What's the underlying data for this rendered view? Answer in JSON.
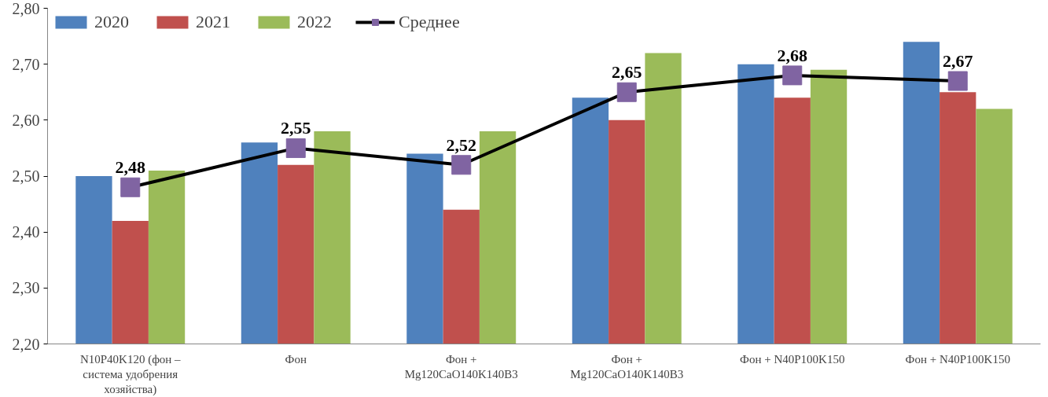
{
  "chart_data": {
    "type": "bar",
    "categories": [
      "N10P40K120 (фон – система удобрения хозяйства)",
      "Фон",
      "Фон + Mg120CaO140K140B3",
      "Фон + Mg120CaO140K140B3",
      "Фон + N40P100K150",
      "Фон + N40P100K150"
    ],
    "series": [
      {
        "name": "2020",
        "color": "#4f81bd",
        "values": [
          2.5,
          2.56,
          2.54,
          2.64,
          2.7,
          2.74
        ]
      },
      {
        "name": "2021",
        "color": "#c0504d",
        "values": [
          2.42,
          2.52,
          2.44,
          2.6,
          2.64,
          2.65
        ]
      },
      {
        "name": "2022",
        "color": "#9bbb59",
        "values": [
          2.51,
          2.58,
          2.58,
          2.72,
          2.69,
          2.62
        ]
      },
      {
        "name": "Среднее",
        "type": "line",
        "color": "#000000",
        "marker": "square",
        "values": [
          2.48,
          2.55,
          2.52,
          2.65,
          2.68,
          2.67
        ],
        "value_labels": [
          "2,48",
          "2,55",
          "2,52",
          "2,65",
          "2,68",
          "2,67"
        ]
      }
    ],
    "ylim": [
      2.2,
      2.8
    ],
    "yticks": [
      {
        "value": 2.2,
        "label": "2,20"
      },
      {
        "value": 2.3,
        "label": "2,30"
      },
      {
        "value": 2.4,
        "label": "2,40"
      },
      {
        "value": 2.5,
        "label": "2,50"
      },
      {
        "value": 2.6,
        "label": "2,60"
      },
      {
        "value": 2.7,
        "label": "2,70"
      },
      {
        "value": 2.8,
        "label": "2,80"
      }
    ],
    "grid": false,
    "legend": "top left"
  }
}
